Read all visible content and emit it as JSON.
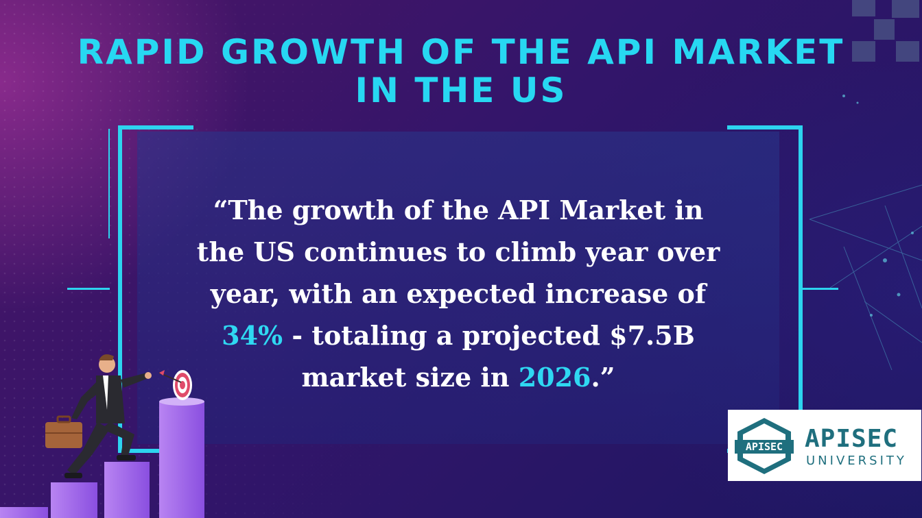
{
  "title": "RAPID GROWTH OF THE API MARKET IN THE US",
  "quote": {
    "line1": "“The growth of the API Market in",
    "line2": "the US continues to climb year over",
    "line3": "year, with an expected increase of",
    "line4_highlight": "34%",
    "line4_rest": " - totaling a projected $7.5B",
    "line5_start": "market size in ",
    "line5_highlight": "2026",
    "line5_end": ".”"
  },
  "logo": {
    "badge_text": "APISEC",
    "wordmark": "APISEC",
    "subtitle": "UNIVERSITY"
  },
  "colors": {
    "accent": "#2dd4ef",
    "background_start": "#4a1566",
    "background_end": "#1d1762",
    "logo_teal": "#1f6f7e"
  },
  "illustration": "businessman-climbing-bar-steps-to-target"
}
